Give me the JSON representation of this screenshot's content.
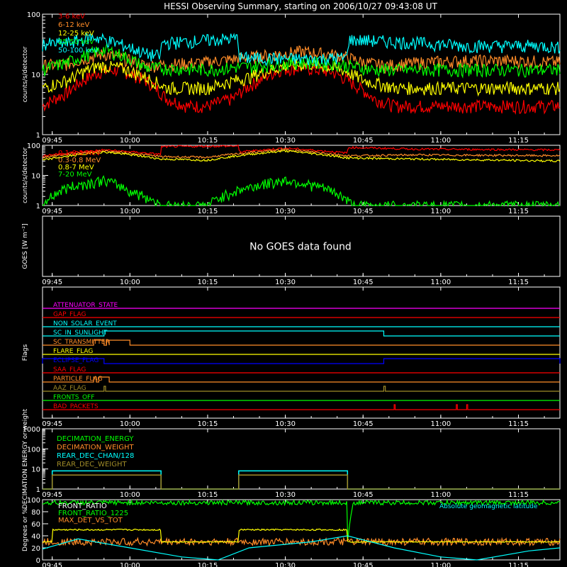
{
  "title": "HESSI Observing Summary, starting on 2006/10/27 09:43:08 UT",
  "time_ticks": [
    "09:45",
    "10:00",
    "10:15",
    "10:30",
    "10:45",
    "11:00",
    "11:15"
  ],
  "colors": {
    "background": "#000000",
    "axes": "#ffffff",
    "red": "#ff0000",
    "orange": "#ff8c28",
    "yellow": "#ffff00",
    "green": "#00ff00",
    "cyan": "#00ffff",
    "magenta": "#ff00ff",
    "blue": "#0000ff",
    "olive": "#a08c28"
  },
  "chart_data": [
    {
      "type": "line",
      "name": "hxr",
      "ylabel": "counts/s/detector",
      "yscale": "log",
      "ylim": [
        1,
        100
      ],
      "yticks": [
        "1",
        "10",
        "100"
      ],
      "x_range_min": [
        -1.87,
        44
      ],
      "series": [
        {
          "name": "3-6 keV",
          "color": "#ff0000",
          "points": [
            [
              -1.87,
              3
            ],
            [
              3,
              5
            ],
            [
              9,
              11
            ],
            [
              13,
              12
            ],
            [
              18,
              8
            ],
            [
              22,
              4
            ],
            [
              26,
              3
            ],
            [
              30,
              3
            ],
            [
              35,
              4
            ],
            [
              40,
              8
            ],
            [
              44,
              12
            ],
            [
              48,
              13
            ],
            [
              54,
              11
            ],
            [
              58,
              7
            ],
            [
              62,
              4
            ],
            [
              66,
              3
            ],
            [
              72,
              3
            ],
            [
              80,
              3
            ],
            [
              98,
              3
            ]
          ]
        },
        {
          "name": "6-12 keV",
          "color": "#ff8c28",
          "points": [
            [
              -1.87,
              14
            ],
            [
              3,
              15
            ],
            [
              10,
              22
            ],
            [
              14,
              18
            ],
            [
              18,
              14
            ],
            [
              30,
              16
            ],
            [
              40,
              20
            ],
            [
              48,
              24
            ],
            [
              55,
              21
            ],
            [
              60,
              16
            ],
            [
              64,
              14
            ],
            [
              72,
              16
            ],
            [
              80,
              17
            ],
            [
              90,
              17
            ],
            [
              98,
              16
            ]
          ]
        },
        {
          "name": "12-25 keV",
          "color": "#ffff00",
          "points": [
            [
              -1.87,
              6
            ],
            [
              3,
              8
            ],
            [
              9,
              14
            ],
            [
              13,
              13
            ],
            [
              18,
              9
            ],
            [
              22,
              6
            ],
            [
              30,
              6
            ],
            [
              38,
              9
            ],
            [
              45,
              14
            ],
            [
              50,
              15
            ],
            [
              56,
              12
            ],
            [
              60,
              8
            ],
            [
              66,
              6
            ],
            [
              80,
              6
            ],
            [
              98,
              6
            ]
          ]
        },
        {
          "name": "25-50 keV",
          "color": "#00ff00",
          "points": [
            [
              -1.87,
              12
            ],
            [
              3,
              16
            ],
            [
              10,
              26
            ],
            [
              14,
              20
            ],
            [
              18,
              13
            ],
            [
              30,
              12
            ],
            [
              40,
              14
            ],
            [
              48,
              16
            ],
            [
              55,
              15
            ],
            [
              62,
              12
            ],
            [
              70,
              12
            ],
            [
              80,
              12
            ],
            [
              98,
              12
            ]
          ]
        },
        {
          "name": "50-100 keV",
          "color": "#00ffff",
          "points": [
            [
              -1.87,
              32
            ],
            [
              3,
              33
            ],
            [
              8,
              42
            ],
            [
              10,
              38
            ],
            [
              14,
              30
            ],
            [
              18,
              22
            ],
            [
              21,
              20
            ],
            [
              21.1,
              33
            ],
            [
              36,
              40
            ],
            [
              36.1,
              19
            ],
            [
              50,
              18
            ],
            [
              57,
              19
            ],
            [
              57.1,
              38
            ],
            [
              72,
              33
            ],
            [
              80,
              30
            ],
            [
              95,
              30
            ],
            [
              98,
              28
            ]
          ]
        }
      ]
    },
    {
      "type": "line",
      "name": "gamma",
      "ylabel": "counts/s/detector",
      "yscale": "log",
      "ylim": [
        1,
        100
      ],
      "yticks": [
        "1",
        "10",
        "100"
      ],
      "series": [
        {
          "name": "0.1-0.3 MeV",
          "color": "#ff0000",
          "points": [
            [
              -1.87,
              45
            ],
            [
              10,
              70
            ],
            [
              21,
              50
            ],
            [
              21.1,
              90
            ],
            [
              36,
              95
            ],
            [
              36.1,
              60
            ],
            [
              45,
              80
            ],
            [
              57,
              55
            ],
            [
              57.1,
              85
            ],
            [
              70,
              75
            ],
            [
              98,
              70
            ]
          ]
        },
        {
          "name": "0.3-0.8 MeV",
          "color": "#ff8c28",
          "points": [
            [
              -1.87,
              40
            ],
            [
              10,
              65
            ],
            [
              21,
              42
            ],
            [
              30,
              40
            ],
            [
              45,
              72
            ],
            [
              57,
              45
            ],
            [
              70,
              48
            ],
            [
              98,
              45
            ]
          ]
        },
        {
          "name": "0.8-7 MeV",
          "color": "#ffff00",
          "points": [
            [
              -1.87,
              32
            ],
            [
              10,
              60
            ],
            [
              21,
              35
            ],
            [
              30,
              32
            ],
            [
              45,
              65
            ],
            [
              57,
              38
            ],
            [
              70,
              35
            ],
            [
              98,
              30
            ]
          ]
        },
        {
          "name": "7-20 MeV",
          "color": "#00ff00",
          "points": [
            [
              -1.87,
              1
            ],
            [
              3,
              4
            ],
            [
              10,
              7
            ],
            [
              15,
              3
            ],
            [
              21,
              1
            ],
            [
              30,
              1
            ],
            [
              38,
              4
            ],
            [
              45,
              7
            ],
            [
              52,
              4
            ],
            [
              58,
              1
            ],
            [
              98,
              1
            ]
          ]
        }
      ]
    },
    {
      "type": "line",
      "name": "goes",
      "ylabel": "GOES [W m⁻²]",
      "message": "No GOES data found",
      "series": []
    },
    {
      "type": "step",
      "name": "flags",
      "ylabel": "Flags",
      "series": [
        {
          "name": "ATTENUATOR_STATE",
          "color": "#ff00ff",
          "states": []
        },
        {
          "name": "GAP_FLAG",
          "color": "#ff0000",
          "states": []
        },
        {
          "name": "NON_SOLAR_EVENT",
          "color": "#00ffff",
          "states": []
        },
        {
          "name": "SC_IN_SUNLIGHT",
          "color": "#00ffff",
          "states": [
            [
              10,
              64,
              1
            ]
          ]
        },
        {
          "name": "SC_TRANSMITTER",
          "color": "#ff8c28",
          "states": [
            [
              8,
              10,
              1
            ],
            [
              10.5,
              11,
              1
            ],
            [
              11,
              15,
              1
            ]
          ]
        },
        {
          "name": "FLARE_FLAG",
          "color": "#ffff00",
          "states": []
        },
        {
          "name": "ECLIPSE_FLAG",
          "color": "#0000ff",
          "states": [
            [
              -1.87,
              10,
              1
            ],
            [
              64,
              98,
              1
            ]
          ]
        },
        {
          "name": "SAA_FLAG",
          "color": "#ff0000",
          "states": []
        },
        {
          "name": "PARTICLE_FLAG",
          "color": "#ff8c28",
          "states": [
            [
              8,
              8.5,
              1
            ],
            [
              9,
              11,
              1
            ]
          ]
        },
        {
          "name": "AAZ_FLAG",
          "color": "#a08c28",
          "states": [
            [
              10,
              10.3,
              1
            ],
            [
              64,
              64.3,
              1
            ]
          ]
        },
        {
          "name": "FRONTS_OFF",
          "color": "#00ff00",
          "states": []
        },
        {
          "name": "BAD_PACKETS",
          "color": "#ff0000",
          "states": [
            [
              66,
              66.2,
              1
            ],
            [
              78,
              78.2,
              1
            ],
            [
              80,
              80.2,
              1
            ]
          ]
        }
      ]
    },
    {
      "type": "line",
      "name": "decimation",
      "ylabel": "DECIMATION ENERGY or weight",
      "yscale": "log",
      "ylim": [
        1,
        1000
      ],
      "yticks": [
        "1",
        "10",
        "100",
        "1000"
      ],
      "series": [
        {
          "name": "DECIMATION_ENERGY",
          "color": "#00ff00",
          "points": []
        },
        {
          "name": "DECIMATION_WEIGHT",
          "color": "#ff8c28",
          "points": []
        },
        {
          "name": "REAR_DEC_CHAN/128",
          "color": "#00ffff",
          "points": [
            [
              -1.87,
              1
            ],
            [
              0,
              1
            ],
            [
              0,
              8
            ],
            [
              21,
              8
            ],
            [
              21,
              1
            ],
            [
              36,
              1
            ],
            [
              36,
              8
            ],
            [
              57,
              8
            ],
            [
              57,
              1
            ],
            [
              98,
              1
            ]
          ]
        },
        {
          "name": "REAR_DEC_WEIGHT",
          "color": "#a08c28",
          "points": [
            [
              -1.87,
              1
            ],
            [
              0,
              1
            ],
            [
              0,
              5
            ],
            [
              21,
              5
            ],
            [
              21,
              1
            ],
            [
              36,
              1
            ],
            [
              36,
              5
            ],
            [
              57,
              5
            ],
            [
              57,
              1
            ],
            [
              98,
              1
            ]
          ]
        }
      ]
    },
    {
      "type": "line",
      "name": "ratios",
      "ylabel": "Degrees or %",
      "ylim": [
        0,
        100
      ],
      "yticks": [
        "0",
        "20",
        "40",
        "60",
        "80",
        "100"
      ],
      "annotation": "Absolute geomagnetic latitude",
      "series": [
        {
          "name": "FRONT_RATIO",
          "color": "#ffffff",
          "points": []
        },
        {
          "name": "FRONT_RATIO_1225",
          "color": "#00ff00",
          "points": [
            [
              -1.87,
              95
            ],
            [
              20,
              95
            ],
            [
              40,
              95
            ],
            [
              57,
              95
            ],
            [
              57,
              30
            ],
            [
              58,
              95
            ],
            [
              98,
              95
            ]
          ]
        },
        {
          "name": "MAX_DET_VS_TOT",
          "color": "#ff8c28",
          "points": [
            [
              -1.87,
              30
            ],
            [
              98,
              30
            ]
          ]
        },
        {
          "name": "yellow",
          "color": "#ffff00",
          "points": [
            [
              -1.87,
              30
            ],
            [
              0,
              30
            ],
            [
              0,
              50
            ],
            [
              21,
              50
            ],
            [
              21,
              30
            ],
            [
              36,
              30
            ],
            [
              36,
              50
            ],
            [
              57,
              50
            ],
            [
              57,
              30
            ],
            [
              98,
              30
            ]
          ]
        },
        {
          "name": "latitude",
          "color": "#00ffff",
          "points": [
            [
              -1.87,
              18
            ],
            [
              5,
              35
            ],
            [
              15,
              20
            ],
            [
              25,
              5
            ],
            [
              32,
              0
            ],
            [
              38,
              20
            ],
            [
              50,
              30
            ],
            [
              57,
              40
            ],
            [
              66,
              20
            ],
            [
              75,
              5
            ],
            [
              82,
              0
            ],
            [
              92,
              15
            ],
            [
              98,
              20
            ]
          ]
        }
      ]
    }
  ]
}
